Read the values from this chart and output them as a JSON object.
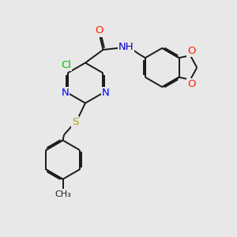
{
  "bg_color": "#e8e8e8",
  "bond_color": "#1a1a1a",
  "atoms": {
    "Cl": {
      "color": "#00bb00",
      "fontsize": 9.5
    },
    "O": {
      "color": "#ff2200",
      "fontsize": 9.5
    },
    "N": {
      "color": "#0000ff",
      "fontsize": 9.5
    },
    "S": {
      "color": "#aaaa00",
      "fontsize": 9.5
    },
    "NH": {
      "color": "#0000cc",
      "fontsize": 9.5
    },
    "C": {
      "color": "#1a1a1a",
      "fontsize": 9
    },
    "CH3": {
      "color": "#1a1a1a",
      "fontsize": 9
    }
  },
  "line_width": 1.4
}
